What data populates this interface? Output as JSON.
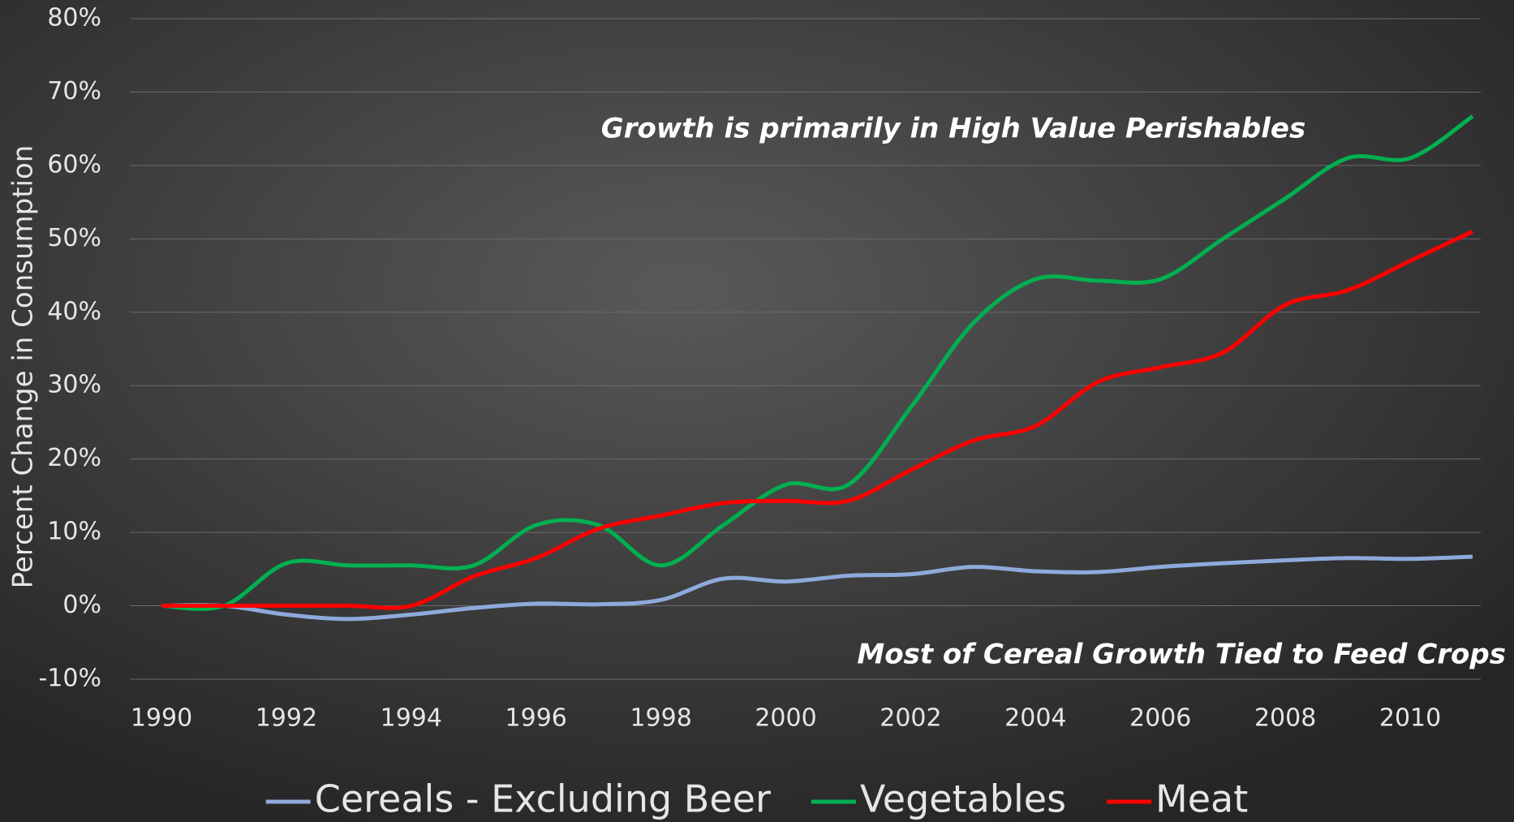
{
  "chart_data": {
    "type": "line",
    "y_label": "Percent Change in Consumption",
    "annotations": [
      "Growth is primarily in High Value Perishables",
      "Most of Cereal Growth Tied to Feed Crops"
    ],
    "x": [
      1990,
      1991,
      1992,
      1993,
      1994,
      1995,
      1996,
      1997,
      1998,
      1999,
      2000,
      2001,
      2002,
      2003,
      2004,
      2005,
      2006,
      2007,
      2008,
      2009,
      2010,
      2011
    ],
    "xlim": [
      1990,
      2011
    ],
    "xticks": [
      1990,
      1992,
      1994,
      1996,
      1998,
      2000,
      2002,
      2004,
      2006,
      2008,
      2010
    ],
    "ylim": [
      -10,
      80
    ],
    "yticks": [
      {
        "value": -10,
        "label": "-10%"
      },
      {
        "value": 0,
        "label": "0%"
      },
      {
        "value": 10,
        "label": "10%"
      },
      {
        "value": 20,
        "label": "20%"
      },
      {
        "value": 30,
        "label": "30%"
      },
      {
        "value": 40,
        "label": "40%"
      },
      {
        "value": 50,
        "label": "50%"
      },
      {
        "value": 60,
        "label": "60%"
      },
      {
        "value": 70,
        "label": "70%"
      },
      {
        "value": 80,
        "label": "80%"
      }
    ],
    "grid": true,
    "legend": "bottom",
    "series": [
      {
        "name": "Cereals - Excluding Beer",
        "color": "#8eaadb",
        "values": [
          0,
          0,
          -1.2,
          -1.8,
          -1.2,
          -0.3,
          0.3,
          0.2,
          0.8,
          3.7,
          3.3,
          4.1,
          4.3,
          5.3,
          4.7,
          4.6,
          5.3,
          5.8,
          6.2,
          6.5,
          6.4,
          6.7
        ]
      },
      {
        "name": "Vegetables",
        "color": "#00b050",
        "values": [
          0,
          0,
          5.8,
          5.5,
          5.5,
          5.5,
          11,
          11,
          5.5,
          11,
          16.5,
          16.5,
          27,
          38.5,
          44.5,
          44.3,
          44.5,
          50,
          55.5,
          61,
          61,
          66.7
        ]
      },
      {
        "name": "Meat",
        "color": "#ff0000",
        "values": [
          0,
          0,
          0,
          0,
          0,
          4,
          6.5,
          10.5,
          12.3,
          14,
          14.3,
          14.3,
          18.5,
          22.5,
          24.5,
          30.5,
          32.5,
          34.5,
          41,
          43,
          47,
          51
        ]
      }
    ]
  }
}
